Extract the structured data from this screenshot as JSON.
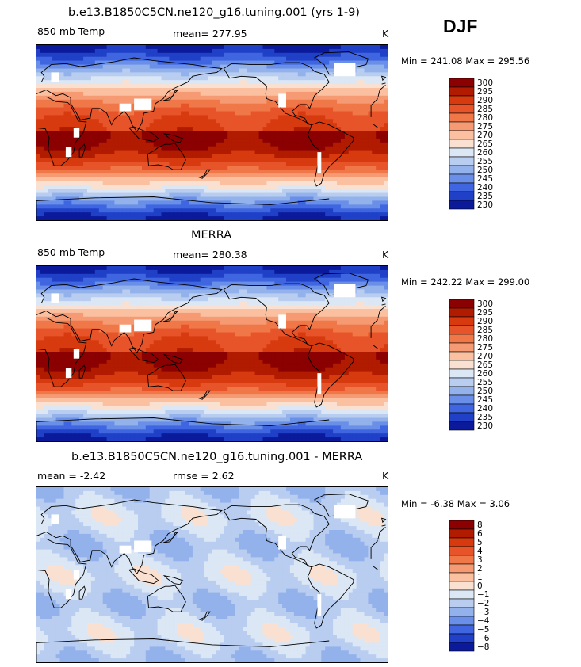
{
  "season": "DJF",
  "panels": [
    {
      "title": "b.e13.B1850C5CN.ne120_g16.tuning.001 (yrs 1-9)",
      "left_label": "850 mb Temp",
      "center_label": "mean=  277.95",
      "units": "K",
      "minmax": "Min = 241.08 Max = 295.56",
      "levels": [
        "300",
        "295",
        "290",
        "285",
        "280",
        "275",
        "270",
        "265",
        "260",
        "255",
        "250",
        "245",
        "240",
        "235",
        "230"
      ],
      "map_data": {
        "field": "model_temperature",
        "mean": 277.95,
        "min": 241.08,
        "max": 295.56,
        "anomaly": false
      }
    },
    {
      "title": "MERRA",
      "left_label": "850 mb Temp",
      "center_label": "mean=  280.38",
      "units": "K",
      "minmax": "Min = 242.22 Max = 299.00",
      "levels": [
        "300",
        "295",
        "290",
        "285",
        "280",
        "275",
        "270",
        "265",
        "260",
        "255",
        "250",
        "245",
        "240",
        "235",
        "230"
      ],
      "map_data": {
        "field": "reanalysis_temperature",
        "mean": 280.38,
        "min": 242.22,
        "max": 299.0,
        "anomaly": false
      }
    },
    {
      "title": "b.e13.B1850C5CN.ne120_g16.tuning.001 - MERRA",
      "left_label": "mean =   -2.42",
      "center_label": "rmse =    2.62",
      "units": "K",
      "minmax": "Min =   -6.38 Max =    3.06",
      "levels": [
        "8",
        "6",
        "5",
        "4",
        "3",
        "2",
        "1",
        "0",
        "−1",
        "−2",
        "−3",
        "−4",
        "−5",
        "−6",
        "−8"
      ],
      "map_data": {
        "field": "difference",
        "mean": -2.42,
        "rmse": 2.62,
        "min": -6.38,
        "max": 3.06,
        "anomaly": true
      }
    }
  ],
  "colormap": [
    "#8b0000",
    "#b11b00",
    "#d63a0e",
    "#e8542a",
    "#f07848",
    "#f59a72",
    "#fac0a0",
    "#fae0d0",
    "#dbe7f5",
    "#b8cdf0",
    "#93b2ec",
    "#6a8fe8",
    "#3f66e0",
    "#1f40c7",
    "#0a1a9a"
  ],
  "land_color": "#ffffff"
}
